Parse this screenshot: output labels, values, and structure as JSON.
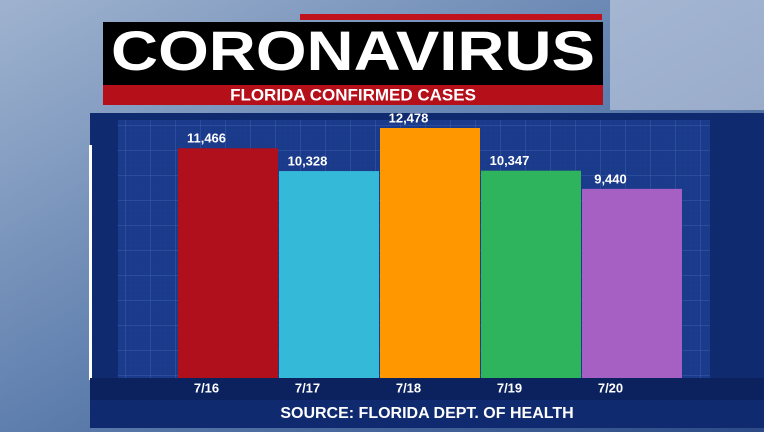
{
  "chart_data": {
    "type": "bar",
    "title": "CORONAVIRUS",
    "subtitle": "FLORIDA CONFIRMED CASES",
    "source": "SOURCE: FLORIDA DEPT. OF HEALTH",
    "categories": [
      "7/16",
      "7/17",
      "7/18",
      "7/19",
      "7/20"
    ],
    "values": [
      11466,
      10328,
      12478,
      10347,
      9440
    ],
    "value_labels": [
      "11,466",
      "10,328",
      "12,478",
      "10,347",
      "9,440"
    ],
    "colors": [
      "#b00f1c",
      "#35b9d9",
      "#ff9800",
      "#2eb45c",
      "#a65fc2"
    ]
  }
}
